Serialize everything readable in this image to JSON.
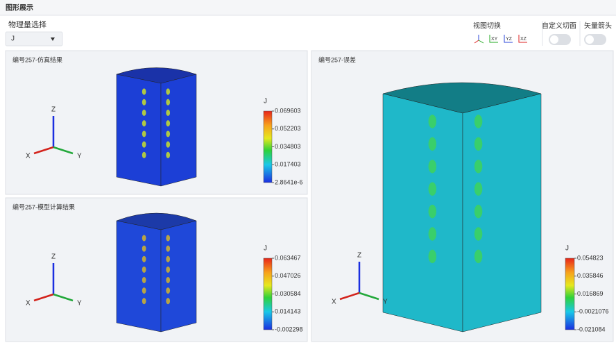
{
  "header": {
    "title": "图形展示"
  },
  "controls": {
    "quantity_label": "物理量选择",
    "quantity_value": "J",
    "view_label": "视图切换",
    "view_buttons": [
      "XY",
      "YZ",
      "XZ"
    ],
    "section_label": "自定义切面",
    "arrow_label": "矢量箭头"
  },
  "panels": [
    {
      "title": "编号257-仿真结果",
      "legend_title": "J",
      "legend_labels": [
        "0.069603",
        "0.052203",
        "0.034803",
        "0.017403",
        "2.8641e-6"
      ],
      "axes": [
        "Z",
        "X",
        "Y"
      ]
    },
    {
      "title": "编号257-模型计算结果",
      "legend_title": "J",
      "legend_labels": [
        "0.063467",
        "0.047026",
        "0.030584",
        "0.014143",
        "-0.002298"
      ],
      "axes": [
        "Z",
        "X",
        "Y"
      ]
    },
    {
      "title": "编号257-误差",
      "legend_title": "J",
      "legend_labels": [
        "0.054823",
        "0.035846",
        "0.016869",
        "-0.0021076",
        "-0.021084"
      ],
      "axes": [
        "Z",
        "X",
        "Y"
      ]
    }
  ]
}
